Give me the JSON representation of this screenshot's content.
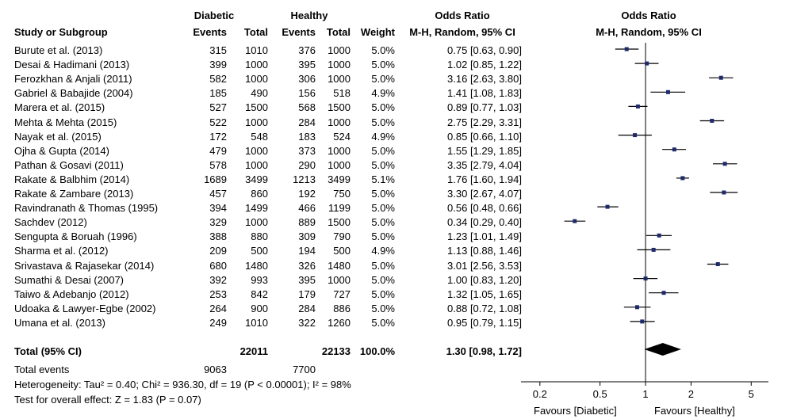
{
  "headers": {
    "group1": "Diabetic",
    "group2": "Healthy",
    "odds_ratio_table": "Odds Ratio",
    "odds_ratio_plot": "Odds Ratio",
    "study": "Study or Subgroup",
    "events1": "Events",
    "total1": "Total",
    "events2": "Events",
    "total2": "Total",
    "weight": "Weight",
    "method_table": "M-H, Random, 95% CI",
    "method_plot": "M-H, Random, 95% CI"
  },
  "studies": [
    {
      "name": "Burute et al. (2013)",
      "e1": "315",
      "t1": "1010",
      "e2": "376",
      "t2": "1000",
      "weight": "5.0%",
      "ci_text": "0.75 [0.63, 0.90]"
    },
    {
      "name": "Desai & Hadimani  (2013)",
      "e1": "399",
      "t1": "1000",
      "e2": "395",
      "t2": "1000",
      "weight": "5.0%",
      "ci_text": "1.02 [0.85, 1.22]"
    },
    {
      "name": "Ferozkhan & Anjali (2011)",
      "e1": "582",
      "t1": "1000",
      "e2": "306",
      "t2": "1000",
      "weight": "5.0%",
      "ci_text": "3.16 [2.63, 3.80]"
    },
    {
      "name": "Gabriel & Babajide (2004)",
      "e1": "185",
      "t1": "490",
      "e2": "156",
      "t2": "518",
      "weight": "4.9%",
      "ci_text": "1.41 [1.08, 1.83]"
    },
    {
      "name": "Marera et al. (2015)",
      "e1": "527",
      "t1": "1500",
      "e2": "568",
      "t2": "1500",
      "weight": "5.0%",
      "ci_text": "0.89 [0.77, 1.03]"
    },
    {
      "name": "Mehta & Mehta (2015)",
      "e1": "522",
      "t1": "1000",
      "e2": "284",
      "t2": "1000",
      "weight": "5.0%",
      "ci_text": "2.75 [2.29, 3.31]"
    },
    {
      "name": "Nayak et al. (2015)",
      "e1": "172",
      "t1": "548",
      "e2": "183",
      "t2": "524",
      "weight": "4.9%",
      "ci_text": "0.85 [0.66, 1.10]"
    },
    {
      "name": "Ojha & Gupta (2014)",
      "e1": "479",
      "t1": "1000",
      "e2": "373",
      "t2": "1000",
      "weight": "5.0%",
      "ci_text": "1.55 [1.29, 1.85]"
    },
    {
      "name": "Pathan & Gosavi (2011)",
      "e1": "578",
      "t1": "1000",
      "e2": "290",
      "t2": "1000",
      "weight": "5.0%",
      "ci_text": "3.35 [2.79, 4.04]"
    },
    {
      "name": "Rakate & Balbhim  (2014)",
      "e1": "1689",
      "t1": "3499",
      "e2": "1213",
      "t2": "3499",
      "weight": "5.1%",
      "ci_text": "1.76 [1.60, 1.94]"
    },
    {
      "name": "Rakate & Zambare  (2013)",
      "e1": "457",
      "t1": "860",
      "e2": "192",
      "t2": "750",
      "weight": "5.0%",
      "ci_text": "3.30 [2.67, 4.07]"
    },
    {
      "name": "Ravindranath & Thomas (1995)",
      "e1": "394",
      "t1": "1499",
      "e2": "466",
      "t2": "1199",
      "weight": "5.0%",
      "ci_text": "0.56 [0.48, 0.66]"
    },
    {
      "name": "Sachdev (2012)",
      "e1": "329",
      "t1": "1000",
      "e2": "889",
      "t2": "1500",
      "weight": "5.0%",
      "ci_text": "0.34 [0.29, 0.40]"
    },
    {
      "name": "Sengupta & Boruah (1996)",
      "e1": "388",
      "t1": "880",
      "e2": "309",
      "t2": "790",
      "weight": "5.0%",
      "ci_text": "1.23 [1.01, 1.49]"
    },
    {
      "name": "Sharma et al. (2012)",
      "e1": "209",
      "t1": "500",
      "e2": "194",
      "t2": "500",
      "weight": "4.9%",
      "ci_text": "1.13 [0.88, 1.46]"
    },
    {
      "name": "Srivastava & Rajasekar (2014)",
      "e1": "680",
      "t1": "1480",
      "e2": "326",
      "t2": "1480",
      "weight": "5.0%",
      "ci_text": "3.01 [2.56, 3.53]"
    },
    {
      "name": "Sumathi & Desai (2007)",
      "e1": "392",
      "t1": "993",
      "e2": "395",
      "t2": "1000",
      "weight": "5.0%",
      "ci_text": "1.00 [0.83, 1.20]"
    },
    {
      "name": "Taiwo & Adebanjo (2012)",
      "e1": "253",
      "t1": "842",
      "e2": "179",
      "t2": "727",
      "weight": "5.0%",
      "ci_text": "1.32 [1.05, 1.65]"
    },
    {
      "name": "Udoaka & Lawyer-Egbe (2002)",
      "e1": "264",
      "t1": "900",
      "e2": "284",
      "t2": "886",
      "weight": "5.0%",
      "ci_text": "0.88 [0.72, 1.08]"
    },
    {
      "name": "Umana et al. (2013)",
      "e1": "249",
      "t1": "1010",
      "e2": "322",
      "t2": "1260",
      "weight": "5.0%",
      "ci_text": "0.95 [0.79, 1.15]"
    }
  ],
  "total": {
    "label": "Total (95% CI)",
    "t1": "22011",
    "t2": "22133",
    "weight": "100.0%",
    "ci_text": "1.30 [0.98, 1.72]"
  },
  "total_events": {
    "label": "Total events",
    "e1": "9063",
    "e2": "7700"
  },
  "heterogeneity": "Heterogeneity: Tau² = 0.40; Chi² = 936.30, df = 19 (P < 0.00001); I² = 98%",
  "overall_effect": "Test for overall effect: Z =  1.83 (P = 0.07)",
  "favours_left": "Favours [Diabetic]",
  "favours_right": "Favours [Healthy]",
  "colors": {
    "marker": "#1f2a6b",
    "diamond": "#000000",
    "line": "#000000"
  },
  "chart_data": {
    "type": "scatter",
    "xscale": "log",
    "xlim": [
      0.15,
      6.5
    ],
    "xticks": [
      0.2,
      0.5,
      1,
      2,
      5
    ],
    "xtick_labels": [
      "0.2",
      "0.5",
      "1",
      "2",
      "5"
    ],
    "reference_line": 1,
    "series": [
      {
        "points": [
          {
            "or": 0.75,
            "lo": 0.63,
            "hi": 0.9
          },
          {
            "or": 1.02,
            "lo": 0.85,
            "hi": 1.22
          },
          {
            "or": 3.16,
            "lo": 2.63,
            "hi": 3.8
          },
          {
            "or": 1.41,
            "lo": 1.08,
            "hi": 1.83
          },
          {
            "or": 0.89,
            "lo": 0.77,
            "hi": 1.03
          },
          {
            "or": 2.75,
            "lo": 2.29,
            "hi": 3.31
          },
          {
            "or": 0.85,
            "lo": 0.66,
            "hi": 1.1
          },
          {
            "or": 1.55,
            "lo": 1.29,
            "hi": 1.85
          },
          {
            "or": 3.35,
            "lo": 2.79,
            "hi": 4.04
          },
          {
            "or": 1.76,
            "lo": 1.6,
            "hi": 1.94
          },
          {
            "or": 3.3,
            "lo": 2.67,
            "hi": 4.07
          },
          {
            "or": 0.56,
            "lo": 0.48,
            "hi": 0.66
          },
          {
            "or": 0.34,
            "lo": 0.29,
            "hi": 0.4
          },
          {
            "or": 1.23,
            "lo": 1.01,
            "hi": 1.49
          },
          {
            "or": 1.13,
            "lo": 0.88,
            "hi": 1.46
          },
          {
            "or": 3.01,
            "lo": 2.56,
            "hi": 3.53
          },
          {
            "or": 1.0,
            "lo": 0.83,
            "hi": 1.2
          },
          {
            "or": 1.32,
            "lo": 1.05,
            "hi": 1.65
          },
          {
            "or": 0.88,
            "lo": 0.72,
            "hi": 1.08
          },
          {
            "or": 0.95,
            "lo": 0.79,
            "hi": 1.15
          }
        ]
      }
    ],
    "summary": {
      "or": 1.3,
      "lo": 0.98,
      "hi": 1.72
    }
  }
}
